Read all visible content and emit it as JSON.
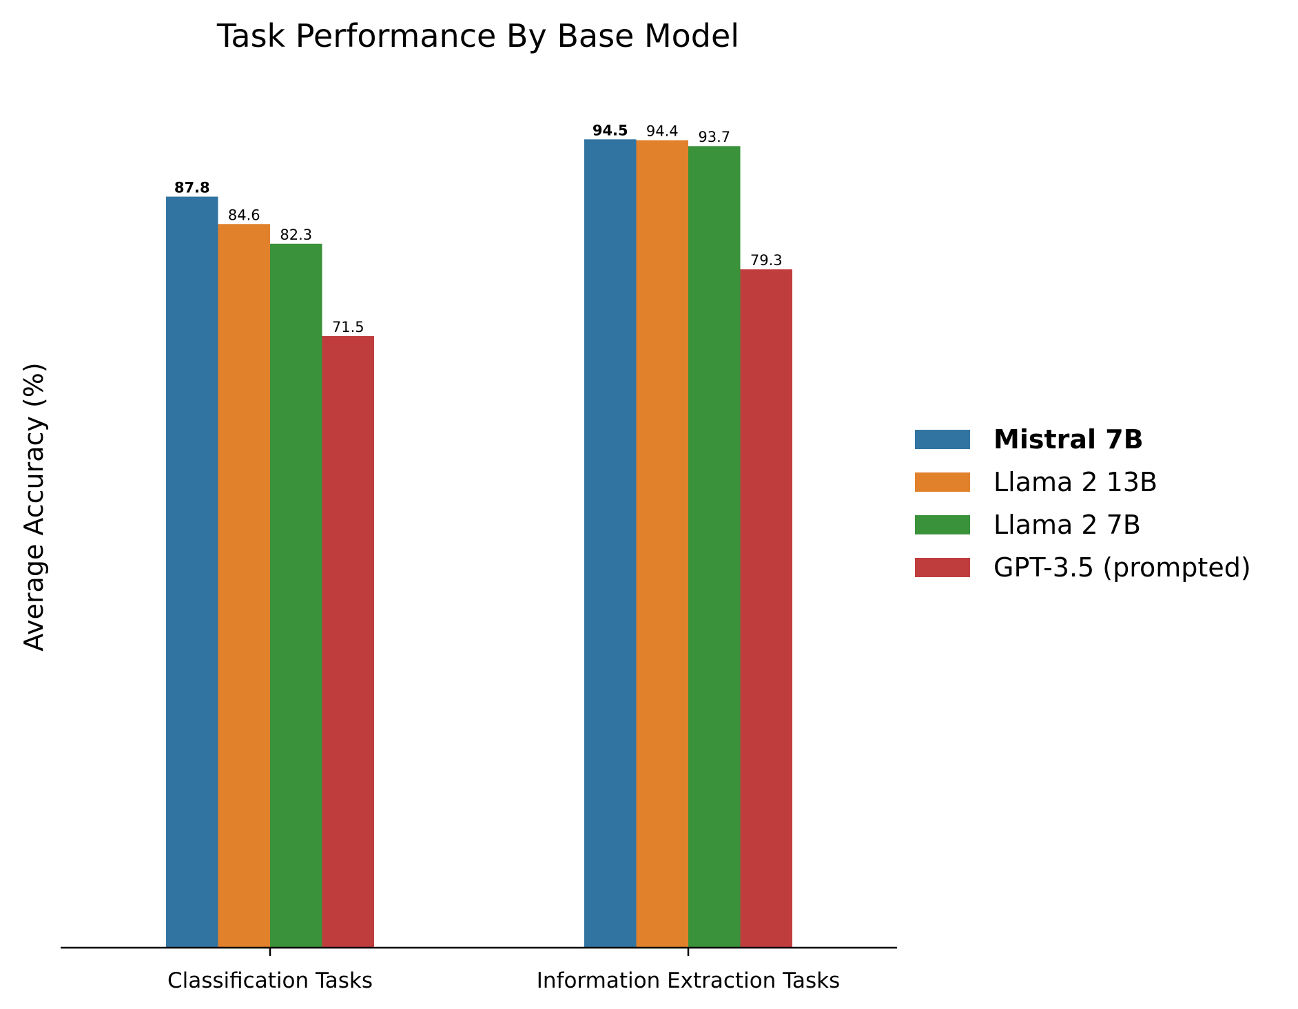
{
  "chart_data": {
    "type": "bar",
    "title": "Task Performance By Base Model",
    "xlabel": "",
    "ylabel": "Average Accuracy (%)",
    "categories": [
      "Classification Tasks",
      "Information Extraction Tasks"
    ],
    "series": [
      {
        "name": "Mistral 7B",
        "values": [
          87.8,
          94.5
        ],
        "color": "#3274a1",
        "bold": true
      },
      {
        "name": "Llama 2 13B",
        "values": [
          84.6,
          94.4
        ],
        "color": "#e1812c",
        "bold": false
      },
      {
        "name": "Llama 2 7B",
        "values": [
          82.3,
          93.7
        ],
        "color": "#3a923a",
        "bold": false
      },
      {
        "name": "GPT-3.5 (prompted)",
        "values": [
          71.5,
          79.3
        ],
        "color": "#c03d3e",
        "bold": false
      }
    ],
    "value_labels": [
      [
        "87.8",
        "94.5"
      ],
      [
        "84.6",
        "94.4"
      ],
      [
        "82.3",
        "93.7"
      ],
      [
        "71.5",
        "79.3"
      ]
    ],
    "ylim": [
      0,
      100
    ],
    "grid": false,
    "legend": "right"
  }
}
